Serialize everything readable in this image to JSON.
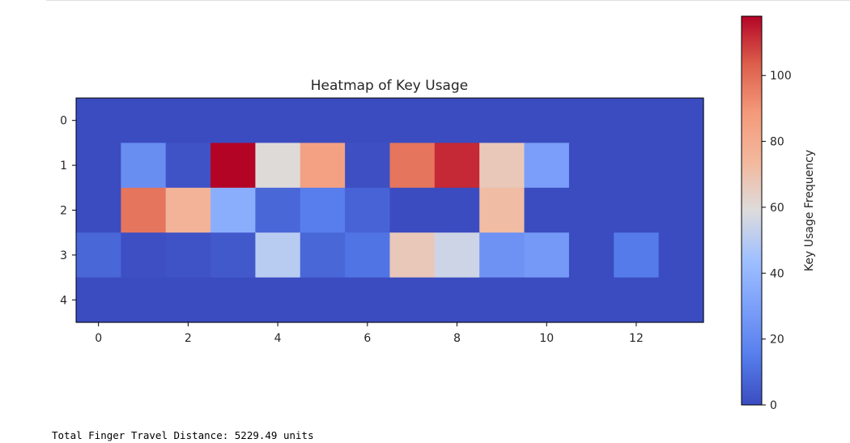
{
  "output_text": "Total Finger Travel Distance: 5229.49 units",
  "chart_data": {
    "type": "heatmap",
    "title": "Heatmap of Key Usage",
    "colormap": "coolwarm",
    "x_ticks": [
      0,
      2,
      4,
      6,
      8,
      10,
      12
    ],
    "y_ticks": [
      0,
      1,
      2,
      3,
      4
    ],
    "colorbar": {
      "label": "Key Usage Frequency",
      "min": 0,
      "max": 118,
      "ticks": [
        0,
        20,
        40,
        60,
        80,
        100
      ]
    },
    "values": [
      [
        0,
        0,
        0,
        0,
        0,
        0,
        0,
        0,
        0,
        0,
        0,
        0,
        0,
        0
      ],
      [
        0,
        22,
        2,
        118,
        60,
        85,
        1,
        98,
        112,
        67,
        29,
        0,
        0,
        0
      ],
      [
        0,
        98,
        76,
        36,
        8,
        15,
        7,
        0,
        0,
        72,
        0,
        0,
        0,
        0
      ],
      [
        8,
        1,
        2,
        4,
        50,
        8,
        12,
        67,
        55,
        24,
        27,
        0,
        14,
        0
      ],
      [
        0,
        0,
        0,
        0,
        0,
        0,
        0,
        0,
        0,
        0,
        0,
        0,
        0,
        0
      ]
    ]
  }
}
